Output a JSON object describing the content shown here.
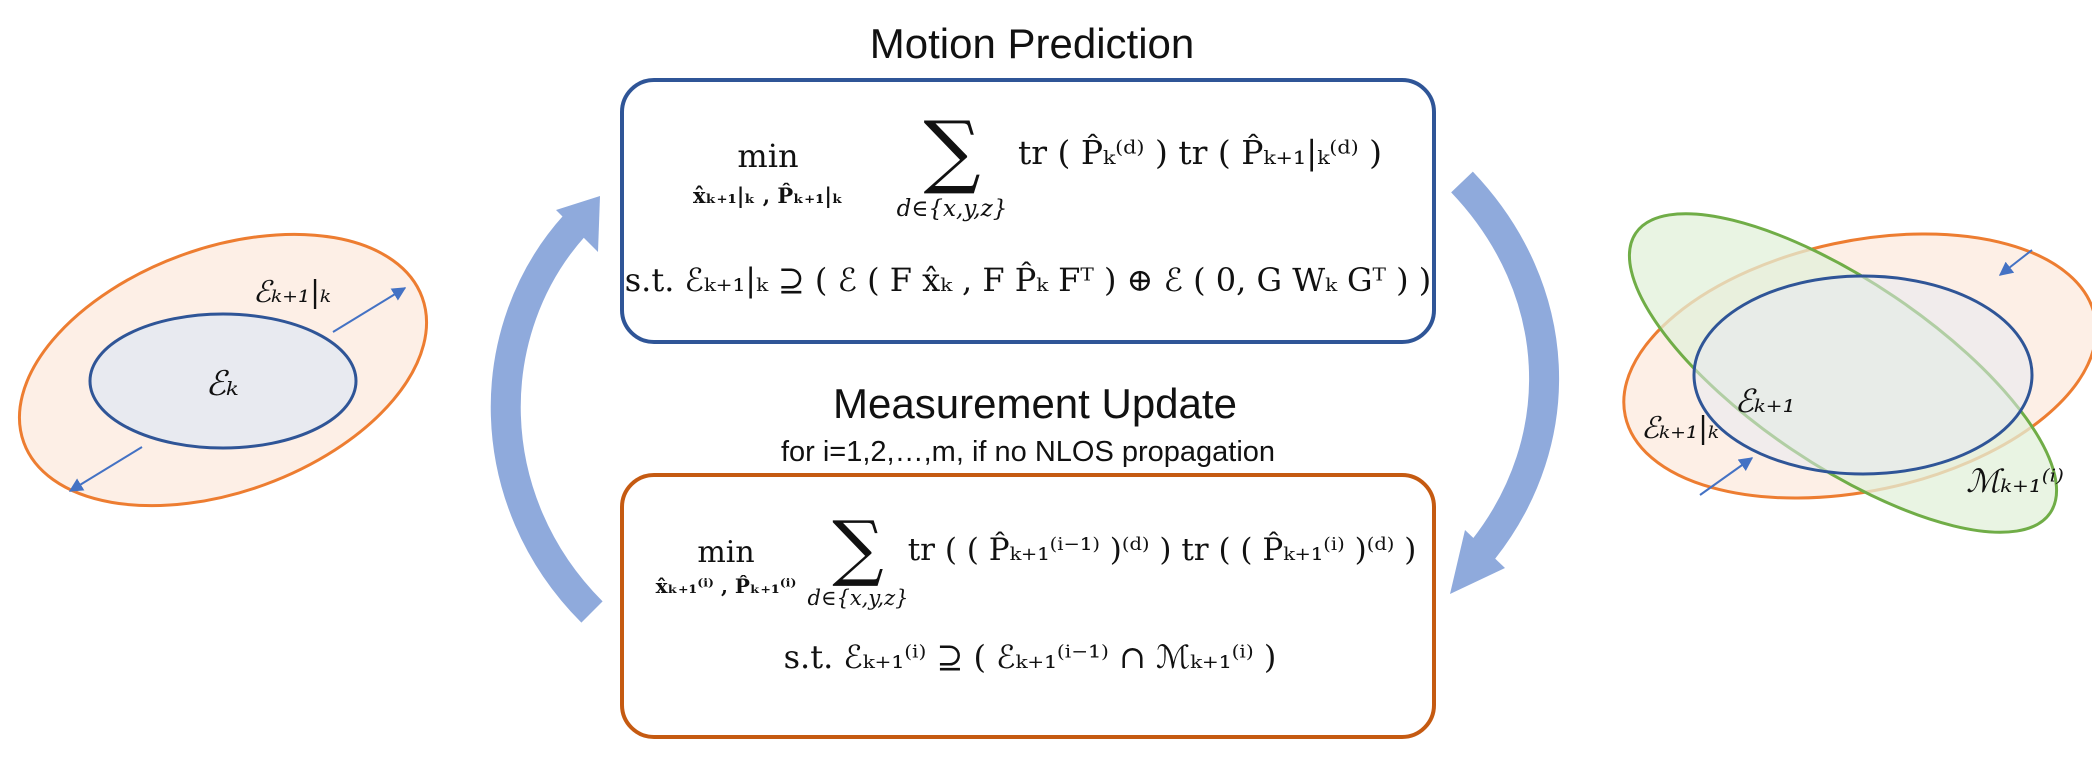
{
  "titles": {
    "motion_prediction": "Motion Prediction",
    "measurement_update": "Measurement Update",
    "measurement_subtitle": "for i=1,2,…,m, if no NLOS propagation"
  },
  "motion_box": {
    "min": "min",
    "min_sub": "x̂ₖ₊₁|ₖ , P̂ₖ₊₁|ₖ",
    "sum": "∑",
    "sum_sub": "d∈{x,y,z}",
    "terms": "tr ( P̂ₖ⁽ᵈ⁾ ) tr ( P̂ₖ₊₁|ₖ⁽ᵈ⁾ )",
    "constraint": "s.t. ℰₖ₊₁|ₖ ⊇ ( ℰ ( F x̂ₖ , F P̂ₖ Fᵀ ) ⊕ ℰ ( 0, G Wₖ Gᵀ ) )"
  },
  "measurement_box": {
    "min": "min",
    "min_sub": "x̂ₖ₊₁⁽ⁱ⁾ , P̂ₖ₊₁⁽ⁱ⁾",
    "sum": "∑",
    "sum_sub": "d∈{x,y,z}",
    "terms": "tr ( ( P̂ₖ₊₁⁽ⁱ⁻¹⁾ )⁽ᵈ⁾ ) tr ( ( P̂ₖ₊₁⁽ⁱ⁾ )⁽ᵈ⁾ )",
    "constraint": "s.t. ℰₖ₊₁⁽ⁱ⁾ ⊇ ( ℰₖ₊₁⁽ⁱ⁻¹⁾ ∩ ℳₖ₊₁⁽ⁱ⁾ )"
  },
  "left_ellipses": {
    "inner_label": "ℰₖ",
    "outer_label": "ℰₖ₊₁|ₖ"
  },
  "right_ellipses": {
    "inner_label": "ℰₖ₊₁",
    "outer_label": "ℰₖ₊₁|ₖ",
    "measurement_label": "ℳₖ₊₁⁽ⁱ⁾"
  },
  "colors": {
    "motion_box_border": "#2f5597",
    "measurement_box_border": "#c55a11",
    "cycle_arrow": "#8faadc",
    "orange_ellipse": "#ed7d31",
    "orange_fill": "#fdefe6",
    "blue_ellipse": "#2f5597",
    "blue_fill": "#e8eaf0",
    "green_ellipse": "#70ad47",
    "green_fill": "#e2f0d9",
    "small_arrow": "#4472c4"
  }
}
